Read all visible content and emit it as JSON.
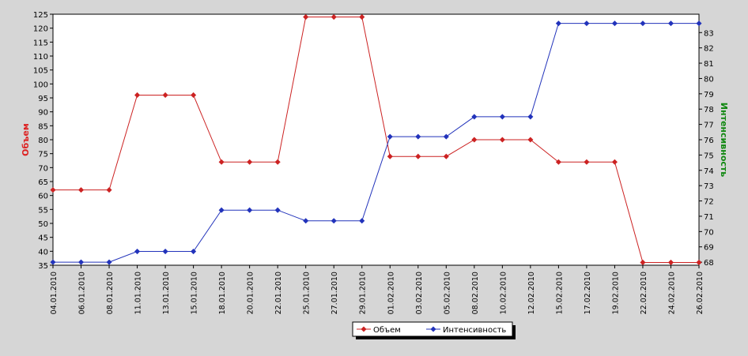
{
  "chart_data": {
    "type": "line",
    "categories": [
      "04.01.2010",
      "06.01.2010",
      "08.01.2010",
      "11.01.2010",
      "13.01.2010",
      "15.01.2010",
      "18.01.2010",
      "20.01.2010",
      "22.01.2010",
      "25.01.2010",
      "27.01.2010",
      "29.01.2010",
      "01.02.2010",
      "03.02.2010",
      "05.02.2010",
      "08.02.2010",
      "10.02.2010",
      "12.02.2010",
      "15.02.2010",
      "17.02.2010",
      "19.02.2010",
      "22.02.2010",
      "24.02.2010",
      "26.02.2010"
    ],
    "series": [
      {
        "name": "Объем",
        "axis": "left",
        "color": "#cc2222",
        "values": [
          62,
          62,
          62,
          96,
          96,
          96,
          72,
          72,
          72,
          124,
          124,
          124,
          74,
          74,
          74,
          80,
          80,
          80,
          72,
          72,
          72,
          36,
          36,
          36
        ]
      },
      {
        "name": "Интенсивность",
        "axis": "right",
        "color": "#2233bb",
        "values": [
          68,
          68,
          68,
          68.7,
          68.7,
          68.7,
          71.4,
          71.4,
          71.4,
          70.7,
          70.7,
          70.7,
          76.2,
          76.2,
          76.2,
          77.5,
          77.5,
          77.5,
          83.6,
          83.6,
          83.6,
          83.6,
          83.6,
          83.6
        ]
      }
    ],
    "ylabel": "Объем",
    "ylabel_color": "#dd2222",
    "y2label": "Интенсивность",
    "y2label_color": "#118811",
    "ylim": [
      35,
      125
    ],
    "yticks": [
      35,
      40,
      45,
      50,
      55,
      60,
      65,
      70,
      75,
      80,
      85,
      90,
      95,
      100,
      105,
      110,
      115,
      120,
      125
    ],
    "y2lim": [
      67.8,
      84.2
    ],
    "y2ticks": [
      68,
      69,
      70,
      71,
      72,
      73,
      74,
      75,
      76,
      77,
      78,
      79,
      80,
      81,
      82,
      83
    ],
    "grid": false,
    "legend_position": "bottom-center"
  }
}
